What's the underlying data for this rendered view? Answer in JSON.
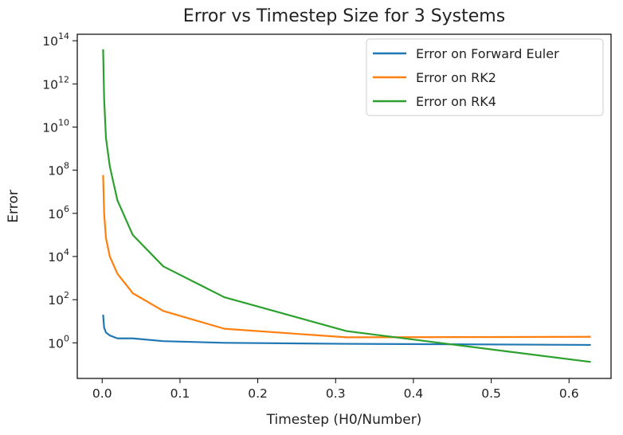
{
  "chart_data": {
    "type": "line",
    "title": "Error vs Timestep Size for 3 Systems",
    "xlabel": "Timestep (H0/Number)",
    "ylabel": "Error",
    "xlim": [
      -0.032,
      0.654
    ],
    "ylim_log10": [
      -1.65,
      14.3
    ],
    "yscale": "log",
    "grid": false,
    "legend_position": "top-right",
    "x_ticks": [
      {
        "value": 0.0,
        "label": "0.0"
      },
      {
        "value": 0.1,
        "label": "0.1"
      },
      {
        "value": 0.2,
        "label": "0.2"
      },
      {
        "value": 0.3,
        "label": "0.3"
      },
      {
        "value": 0.4,
        "label": "0.4"
      },
      {
        "value": 0.5,
        "label": "0.5"
      },
      {
        "value": 0.6,
        "label": "0.6"
      }
    ],
    "y_ticks": [
      {
        "exp": 0,
        "base": "10",
        "sup": "0"
      },
      {
        "exp": 2,
        "base": "10",
        "sup": "2"
      },
      {
        "exp": 4,
        "base": "10",
        "sup": "4"
      },
      {
        "exp": 6,
        "base": "10",
        "sup": "6"
      },
      {
        "exp": 8,
        "base": "10",
        "sup": "8"
      },
      {
        "exp": 10,
        "base": "10",
        "sup": "10"
      },
      {
        "exp": 12,
        "base": "10",
        "sup": "12"
      },
      {
        "exp": 14,
        "base": "10",
        "sup": "14"
      }
    ],
    "series": [
      {
        "name": "Error on Forward Euler",
        "color": "#1f77b4",
        "x": [
          0.0012,
          0.0025,
          0.0049,
          0.0098,
          0.0196,
          0.0393,
          0.0785,
          0.157,
          0.314,
          0.628
        ],
        "y": [
          20,
          5,
          3,
          2.2,
          1.6,
          1.6,
          1.2,
          1.0,
          0.9,
          0.8
        ]
      },
      {
        "name": "Error on RK2",
        "color": "#ff7f0e",
        "x": [
          0.0012,
          0.0025,
          0.0049,
          0.0098,
          0.0196,
          0.0393,
          0.0785,
          0.157,
          0.314,
          0.628
        ],
        "y": [
          60000000.0,
          1000000.0,
          70000.0,
          10000.0,
          1600.0,
          200,
          30,
          4.5,
          1.8,
          1.9
        ]
      },
      {
        "name": "Error on RK4",
        "color": "#2ca02c",
        "x": [
          0.0012,
          0.0025,
          0.0049,
          0.0098,
          0.0196,
          0.0393,
          0.0785,
          0.157,
          0.314,
          0.628
        ],
        "y": [
          40000000000000.0,
          200000000000.0,
          3000000000.0,
          150000000.0,
          4000000.0,
          100000.0,
          3500.0,
          130,
          3.5,
          0.13
        ]
      }
    ]
  }
}
